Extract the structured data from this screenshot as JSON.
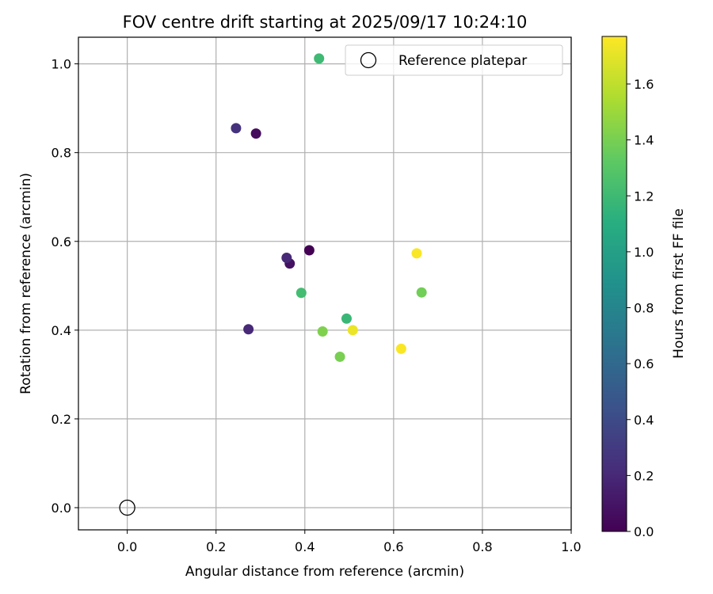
{
  "chart_data": {
    "type": "scatter",
    "title": "FOV centre drift starting at 2025/09/17 10:24:10",
    "xlabel": "Angular distance from reference (arcmin)",
    "ylabel": "Rotation from reference (arcmin)",
    "xlim": [
      -0.11,
      1.0
    ],
    "ylim": [
      -0.05,
      1.06
    ],
    "xticks": [
      0.0,
      0.2,
      0.4,
      0.6,
      0.8,
      1.0
    ],
    "yticks": [
      0.0,
      0.2,
      0.4,
      0.6,
      0.8,
      1.0
    ],
    "xtick_labels": [
      "0.0",
      "0.2",
      "0.4",
      "0.6",
      "0.8",
      "1.0"
    ],
    "ytick_labels": [
      "0.0",
      "0.2",
      "0.4",
      "0.6",
      "0.8",
      "1.0"
    ],
    "grid": true,
    "legend": {
      "position": "top-right",
      "entries": [
        {
          "label": "Reference platepar",
          "marker": "open-circle"
        }
      ]
    },
    "reference_point": {
      "x": 0.0,
      "y": 0.0
    },
    "colormap": "viridis",
    "colorbar": {
      "label": "Hours from first FF file",
      "range": [
        0.0,
        1.77
      ],
      "ticks": [
        0.0,
        0.2,
        0.4,
        0.6,
        0.8,
        1.0,
        1.2,
        1.4,
        1.6
      ],
      "tick_labels": [
        "0.0",
        "0.2",
        "0.4",
        "0.6",
        "0.8",
        "1.0",
        "1.2",
        "1.4",
        "1.6"
      ]
    },
    "points": [
      {
        "x": 0.41,
        "y": 0.58,
        "hours": 0.0
      },
      {
        "x": 0.29,
        "y": 0.843,
        "hours": 0.05
      },
      {
        "x": 0.366,
        "y": 0.55,
        "hours": 0.08
      },
      {
        "x": 0.359,
        "y": 0.563,
        "hours": 0.2
      },
      {
        "x": 0.273,
        "y": 0.402,
        "hours": 0.2
      },
      {
        "x": 0.245,
        "y": 0.855,
        "hours": 0.25
      },
      {
        "x": 0.432,
        "y": 1.012,
        "hours": 1.2
      },
      {
        "x": 0.494,
        "y": 0.426,
        "hours": 1.18
      },
      {
        "x": 0.392,
        "y": 0.484,
        "hours": 1.22
      },
      {
        "x": 0.663,
        "y": 0.485,
        "hours": 1.38
      },
      {
        "x": 0.44,
        "y": 0.397,
        "hours": 1.42
      },
      {
        "x": 0.479,
        "y": 0.34,
        "hours": 1.4
      },
      {
        "x": 0.508,
        "y": 0.4,
        "hours": 1.72
      },
      {
        "x": 0.617,
        "y": 0.358,
        "hours": 1.76
      },
      {
        "x": 0.652,
        "y": 0.573,
        "hours": 1.76
      }
    ]
  }
}
